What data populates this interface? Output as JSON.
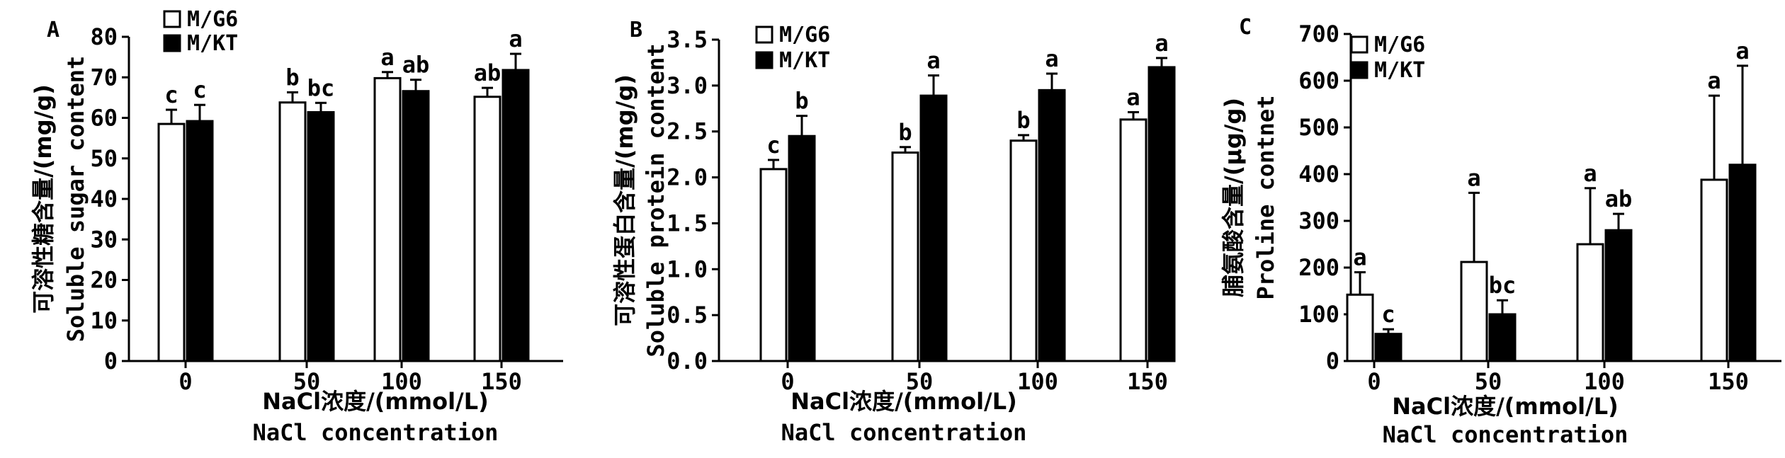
{
  "chart_data": [
    {
      "type": "bar",
      "panel_label": "A",
      "categories": [
        "0",
        "50",
        "100",
        "150"
      ],
      "series": [
        {
          "name": "M/G6",
          "fill": "#ffffff",
          "values": [
            58.5,
            63.8,
            69.8,
            65.2
          ],
          "errors": [
            3.5,
            2.5,
            1.5,
            2.2
          ],
          "letters": [
            "c",
            "b",
            "a",
            "ab"
          ]
        },
        {
          "name": "M/KT",
          "fill": "#000000",
          "values": [
            59.2,
            61.4,
            66.6,
            71.8
          ],
          "errors": [
            4.0,
            2.3,
            2.8,
            4.0
          ],
          "letters": [
            "c",
            "bc",
            "ab",
            "a"
          ]
        }
      ],
      "ylim": [
        0,
        80
      ],
      "yticks": [
        "0",
        "10",
        "20",
        "30",
        "40",
        "50",
        "60",
        "70",
        "80"
      ],
      "ylabel_cn": "可溶性糖含量/(mg/g)",
      "ylabel_en": "Soluble sugar content",
      "xlabel_cn": "NaCl浓度/(mmol/L)",
      "xlabel_en": "NaCl concentration"
    },
    {
      "type": "bar",
      "panel_label": "B",
      "categories": [
        "0",
        "50",
        "100",
        "150"
      ],
      "series": [
        {
          "name": "M/G6",
          "fill": "#ffffff",
          "values": [
            2.09,
            2.27,
            2.4,
            2.63
          ],
          "errors": [
            0.1,
            0.06,
            0.06,
            0.08
          ],
          "letters": [
            "c",
            "b",
            "b",
            "a"
          ]
        },
        {
          "name": "M/KT",
          "fill": "#000000",
          "values": [
            2.45,
            2.89,
            2.95,
            3.2
          ],
          "errors": [
            0.22,
            0.22,
            0.18,
            0.1
          ],
          "letters": [
            "b",
            "a",
            "a",
            "a"
          ]
        }
      ],
      "ylim": [
        0,
        3.5
      ],
      "yticks": [
        "0.0",
        "0.5",
        "1.0",
        "1.5",
        "2.0",
        "2.5",
        "3.0",
        "3.5"
      ],
      "ylabel_cn": "可溶性蛋白含量/(mg/g)",
      "ylabel_en": "Soluble protein content",
      "xlabel_cn": "NaCl浓度/(mmol/L)",
      "xlabel_en": "NaCl concentration"
    },
    {
      "type": "bar",
      "panel_label": "C",
      "categories": [
        "0",
        "50",
        "100",
        "150"
      ],
      "series": [
        {
          "name": "M/G6",
          "fill": "#ffffff",
          "values": [
            142,
            212,
            250,
            388
          ],
          "errors": [
            48,
            148,
            120,
            180
          ],
          "letters": [
            "a",
            "a",
            "a",
            "a"
          ]
        },
        {
          "name": "M/KT",
          "fill": "#000000",
          "values": [
            58,
            100,
            280,
            420
          ],
          "errors": [
            10,
            30,
            35,
            212
          ],
          "letters": [
            "c",
            "bc",
            "ab",
            "a"
          ]
        }
      ],
      "ylim": [
        0,
        700
      ],
      "yticks": [
        "0",
        "100",
        "200",
        "300",
        "400",
        "500",
        "600",
        "700"
      ],
      "ylabel_cn": "脯氨酸含量/(μg/g)",
      "ylabel_en": "Proline contnet",
      "xlabel_cn": "NaCl浓度/(mmol/L)",
      "xlabel_en": "NaCl concentration"
    }
  ]
}
